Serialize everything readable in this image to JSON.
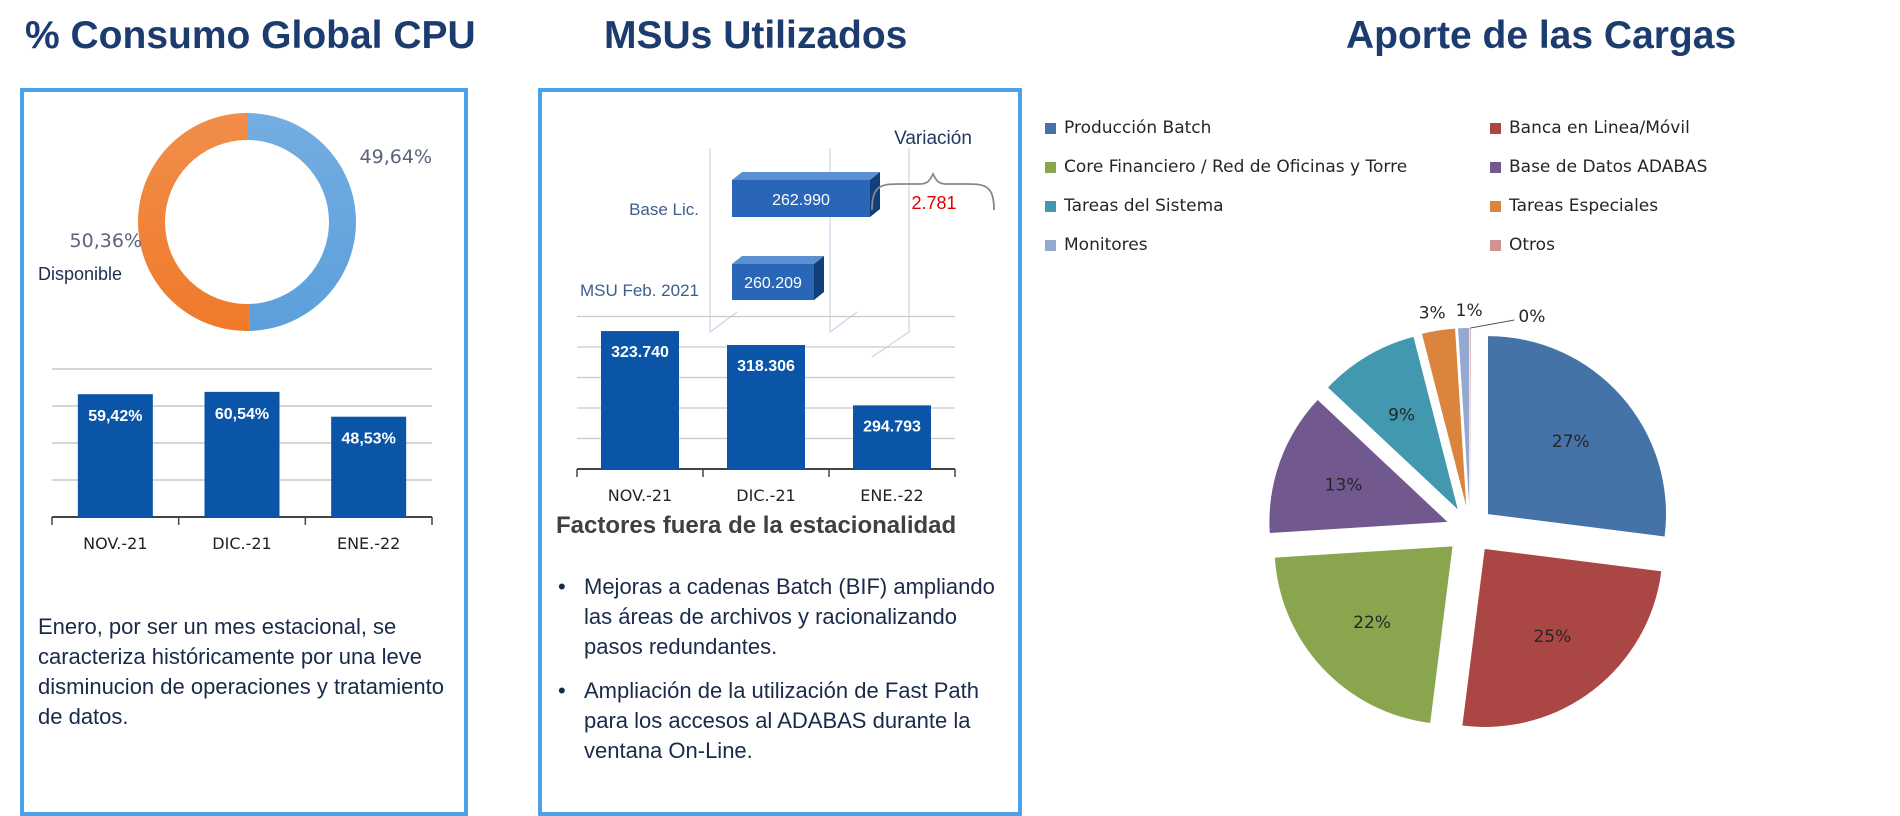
{
  "titles": {
    "cpu": "% Consumo Global CPU",
    "msu": "MSUs Utilizados",
    "cargas": "Aporte de las Cargas"
  },
  "cpu_panel": {
    "donut_label": "Disponible",
    "note": "Enero, por ser un mes estacional, se caracteriza históricamente por una leve disminucion de operaciones y tratamiento de datos."
  },
  "msu_panel": {
    "base_lic_label": "Base Lic.",
    "base_lic_value": "262.990",
    "msu_feb_label": "MSU Feb. 2021",
    "msu_feb_value": "260.209",
    "variacion_label": "Variación",
    "variacion_value": "2.781",
    "factors_heading": "Factores fuera de la estacionalidad",
    "factors": [
      "Mejoras a cadenas Batch (BIF) ampliando las áreas de archivos y racionalizando pasos redundantes.",
      "Ampliación de la utilización de Fast Path para los accesos al ADABAS durante la ventana On-Line."
    ]
  },
  "colors": {
    "title": "#1c3b6e",
    "panel_border": "#4aa1e8",
    "bar": "#0a55a8",
    "donut_used": "#5b9fdc",
    "donut_free": "#ef7a2a",
    "variacion_value": "#e00000"
  },
  "chart_data": [
    {
      "id": "cpu_donut",
      "type": "pie",
      "variant": "donut",
      "slices": [
        {
          "label": "",
          "value": 49.64,
          "display": "49,64%",
          "color": "#5b9fdc"
        },
        {
          "label": "Disponible",
          "value": 50.36,
          "display": "50,36%",
          "color": "#ef7a2a"
        }
      ]
    },
    {
      "id": "cpu_bars",
      "type": "bar",
      "categories": [
        "NOV.-21",
        "DIC.-21",
        "ENE.-22"
      ],
      "values": [
        59.42,
        60.54,
        48.53
      ],
      "labels": [
        "59,42%",
        "60,54%",
        "48,53%"
      ],
      "ylim": [
        0,
        75
      ],
      "grid": true
    },
    {
      "id": "msu_bars",
      "type": "bar",
      "categories": [
        "NOV.-21",
        "DIC.-21",
        "ENE.-22"
      ],
      "values": [
        323740,
        318306,
        294793
      ],
      "labels": [
        "323.740",
        "318.306",
        "294.793"
      ],
      "ylim": [
        270000,
        330000
      ],
      "grid": true
    },
    {
      "id": "aporte_pie",
      "type": "pie",
      "title": "Aporte de las Cargas",
      "legend": "top",
      "slices": [
        {
          "label": "Producción Batch",
          "value": 27,
          "display": "27%",
          "color": "#4572a7"
        },
        {
          "label": "Banca en Linea/Móvil",
          "value": 25,
          "display": "25%",
          "color": "#aa4643"
        },
        {
          "label": "Core Financiero / Red de Oficinas y Torre",
          "value": 22,
          "display": "22%",
          "color": "#89a54e"
        },
        {
          "label": "Base de Datos ADABAS",
          "value": 13,
          "display": "13%",
          "color": "#71588f"
        },
        {
          "label": "Tareas del Sistema",
          "value": 9,
          "display": "9%",
          "color": "#4198af"
        },
        {
          "label": "Tareas Especiales",
          "value": 3,
          "display": "3%",
          "color": "#db843d"
        },
        {
          "label": "Monitores",
          "value": 1,
          "display": "1%",
          "color": "#93a9cf"
        },
        {
          "label": "Otros",
          "value": 0,
          "display": "0%",
          "color": "#d19392"
        }
      ]
    }
  ]
}
